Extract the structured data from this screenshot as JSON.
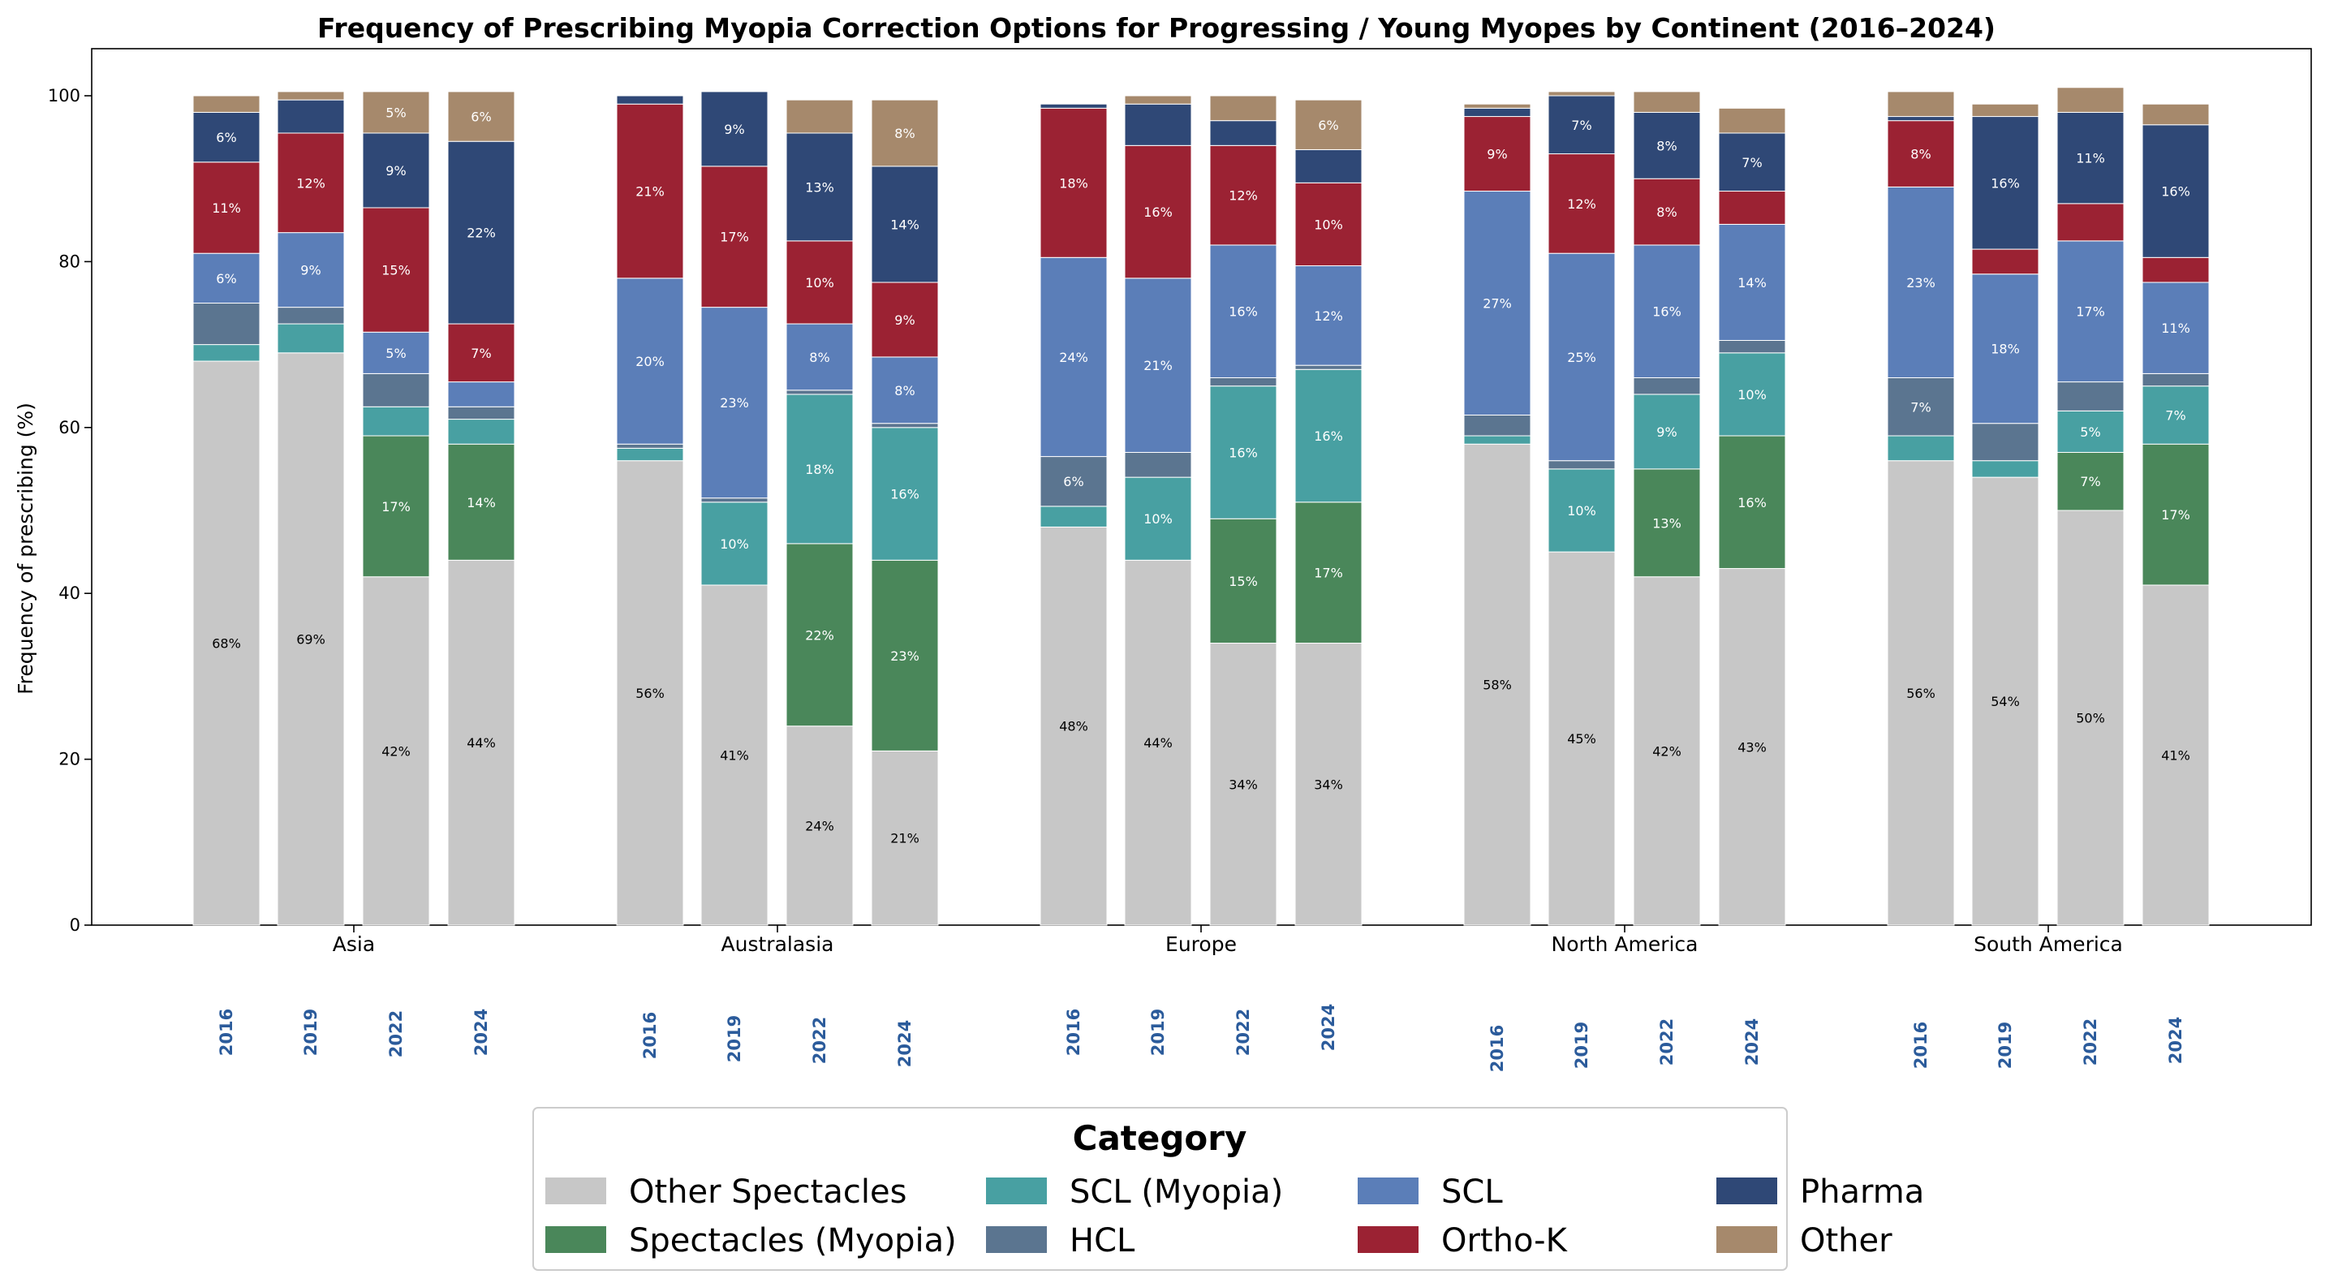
{
  "chart_data": {
    "type": "bar",
    "stacked": true,
    "title": "Frequency of Prescribing Myopia Correction Options for Progressing / Young Myopes by Continent (2016–2024)",
    "xlabel": "",
    "ylabel": "Frequency of prescribing (%)",
    "ylim": [
      0,
      105
    ],
    "yticks": [
      "0",
      "20",
      "40",
      "60",
      "80",
      "100"
    ],
    "grid": false,
    "legend": {
      "title": "Category",
      "placement": "bottom-center"
    },
    "groups": [
      "Asia",
      "Australasia",
      "Europe",
      "North America",
      "South America"
    ],
    "years": [
      "2016",
      "2019",
      "2022",
      "2024"
    ],
    "series": [
      {
        "name": "Other Spectacles",
        "color": "#c7c7c7",
        "label_color": "#000000",
        "values": [
          [
            68,
            69,
            42,
            44
          ],
          [
            56,
            41,
            24,
            21
          ],
          [
            48,
            44,
            34,
            34
          ],
          [
            58,
            45,
            42,
            43
          ],
          [
            56,
            54,
            50,
            41
          ]
        ]
      },
      {
        "name": "Spectacles (Myopia)",
        "color": "#4a875a",
        "label_color": "#ffffff",
        "values": [
          [
            0,
            0,
            17,
            14
          ],
          [
            0,
            0,
            22,
            23
          ],
          [
            0,
            0,
            15,
            17
          ],
          [
            0,
            0,
            13,
            16
          ],
          [
            0,
            0,
            7,
            17
          ]
        ]
      },
      {
        "name": "SCL (Myopia)",
        "color": "#48a0a2",
        "label_color": "#ffffff",
        "values": [
          [
            2,
            3.5,
            3.5,
            3
          ],
          [
            1.5,
            10,
            18,
            16
          ],
          [
            2.5,
            10,
            16,
            16
          ],
          [
            1,
            10,
            9,
            10
          ],
          [
            3,
            2,
            5,
            7
          ]
        ]
      },
      {
        "name": "HCL",
        "color": "#5b7590",
        "label_color": "#ffffff",
        "values": [
          [
            5,
            2,
            4,
            1.5
          ],
          [
            0.5,
            0.5,
            0.5,
            0.5
          ],
          [
            6,
            3,
            1,
            0.5
          ],
          [
            2.5,
            1,
            2,
            1.5
          ],
          [
            7,
            4.5,
            3.5,
            1.5
          ]
        ]
      },
      {
        "name": "SCL",
        "color": "#5b7eb8",
        "label_color": "#ffffff",
        "values": [
          [
            6,
            9,
            5,
            3
          ],
          [
            20,
            23,
            8,
            8
          ],
          [
            24,
            21,
            16,
            12
          ],
          [
            27,
            25,
            16,
            14
          ],
          [
            23,
            18,
            17,
            11
          ]
        ]
      },
      {
        "name": "Ortho-K",
        "color": "#9b2233",
        "label_color": "#ffffff",
        "values": [
          [
            11,
            12,
            15,
            7
          ],
          [
            21,
            17,
            10,
            9
          ],
          [
            18,
            16,
            12,
            10
          ],
          [
            9,
            12,
            8,
            4
          ],
          [
            8,
            3,
            4.5,
            3
          ]
        ]
      },
      {
        "name": "Pharma",
        "color": "#2f4876",
        "label_color": "#ffffff",
        "values": [
          [
            6,
            4,
            9,
            22
          ],
          [
            1,
            9,
            13,
            14
          ],
          [
            0.5,
            5,
            3,
            4
          ],
          [
            1,
            7,
            8,
            7
          ],
          [
            0.5,
            16,
            11,
            16
          ]
        ]
      },
      {
        "name": "Other",
        "color": "#a6896c",
        "label_color": "#ffffff",
        "values": [
          [
            2,
            1,
            5,
            6
          ],
          [
            0,
            0,
            4,
            8
          ],
          [
            0,
            1,
            3,
            6
          ],
          [
            0.5,
            0.5,
            2.5,
            3
          ],
          [
            3,
            1.5,
            3,
            2.5
          ]
        ]
      }
    ],
    "labels": [
      [
        [
          "68%",
          "69%",
          "42%",
          "44%"
        ],
        [
          "",
          "",
          "17%",
          "14%"
        ],
        [
          "",
          "",
          "",
          ""
        ],
        [
          "",
          "",
          "",
          ""
        ],
        [
          "6%",
          "9%",
          "5%",
          ""
        ],
        [
          "11%",
          "12%",
          "15%",
          "7%"
        ],
        [
          "6%",
          "",
          "9%",
          "22%"
        ],
        [
          "",
          "",
          "5%",
          "6%"
        ]
      ],
      [
        [
          "56%",
          "41%",
          "24%",
          "21%"
        ],
        [
          "",
          "",
          "22%",
          "23%"
        ],
        [
          "",
          "10%",
          "18%",
          "16%"
        ],
        [
          "",
          "",
          "",
          ""
        ],
        [
          "20%",
          "23%",
          "8%",
          "8%"
        ],
        [
          "21%",
          "17%",
          "10%",
          "9%"
        ],
        [
          "",
          "9%",
          "13%",
          "14%"
        ],
        [
          "",
          "",
          "",
          "8%"
        ]
      ],
      [
        [
          "48%",
          "44%",
          "34%",
          "34%"
        ],
        [
          "",
          "",
          "15%",
          "17%"
        ],
        [
          "",
          "10%",
          "16%",
          "16%"
        ],
        [
          "6%",
          "",
          "",
          ""
        ],
        [
          "24%",
          "21%",
          "16%",
          "12%"
        ],
        [
          "18%",
          "16%",
          "12%",
          "10%"
        ],
        [
          "",
          "",
          "",
          ""
        ],
        [
          "",
          "",
          "",
          "6%"
        ]
      ],
      [
        [
          "58%",
          "45%",
          "42%",
          "43%"
        ],
        [
          "",
          "",
          "13%",
          "16%"
        ],
        [
          "",
          "10%",
          "9%",
          "10%"
        ],
        [
          "",
          "",
          "",
          ""
        ],
        [
          "27%",
          "25%",
          "16%",
          "14%"
        ],
        [
          "9%",
          "12%",
          "8%",
          ""
        ],
        [
          "",
          "7%",
          "8%",
          "7%"
        ],
        [
          "",
          "",
          "",
          ""
        ]
      ],
      [
        [
          "56%",
          "54%",
          "50%",
          "41%"
        ],
        [
          "",
          "",
          "7%",
          "17%"
        ],
        [
          "",
          "",
          "5%",
          "7%"
        ],
        [
          "7%",
          "",
          "",
          ""
        ],
        [
          "23%",
          "18%",
          "17%",
          "11%"
        ],
        [
          "8%",
          "",
          "",
          ""
        ],
        [
          "",
          "16%",
          "11%",
          "16%"
        ],
        [
          "",
          "",
          "",
          ""
        ]
      ]
    ]
  }
}
